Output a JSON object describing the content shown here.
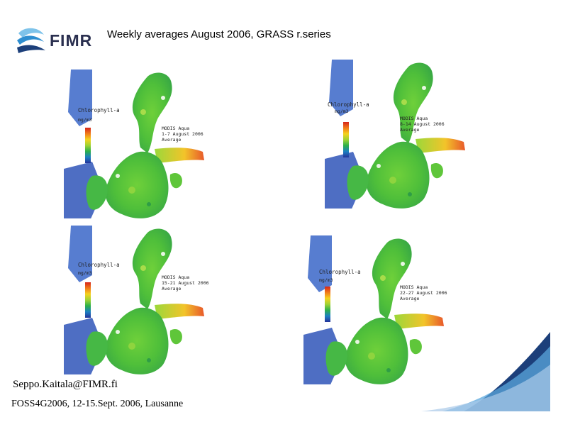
{
  "slide": {
    "title": "Weekly averages August 2006, GRASS r.series",
    "email": "Seppo.Kaitala@FIMR.fi",
    "footer": "FOSS4G2006, 12-15.Sept. 2006, Lausanne"
  },
  "logo": {
    "text": "FIMR"
  },
  "maps": [
    {
      "variable": "Chlorophyll-a",
      "units": "mg/m3",
      "sensor": "MODIS Aqua",
      "period": "1-7 August 2006",
      "stat": "Average"
    },
    {
      "variable": "Chlorophyll-a",
      "units": "mg/m3",
      "sensor": "MODIS Aqua",
      "period": "8-14 August 2006",
      "stat": "Average"
    },
    {
      "variable": "Chlorophyll-a",
      "units": "mg/m3",
      "sensor": "MODIS Aqua",
      "period": "15-21 August 2006",
      "stat": "Average"
    },
    {
      "variable": "Chlorophyll-a",
      "units": "mg/m3",
      "sensor": "MODIS Aqua",
      "period": "22-27 August 2006",
      "stat": "Average"
    }
  ],
  "colors": {
    "brand_dark": "#1c3f7a",
    "brand_light": "#5aa7dc",
    "water_green": "#5cc83a"
  }
}
